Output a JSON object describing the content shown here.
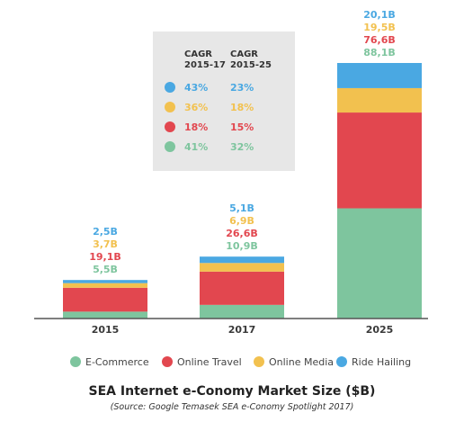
{
  "chart_data": {
    "type": "bar",
    "stacked": true,
    "title": "SEA Internet e-Conomy Market Size ($B)",
    "subtitle": "(Source: Google Temasek SEA e-Conomy Spotlight 2017)",
    "categories": [
      "2015",
      "2017",
      "2025"
    ],
    "series": [
      {
        "name": "E-Commerce",
        "color": "#7ec59e",
        "values": [
          5.5,
          10.9,
          88.1
        ],
        "labels": [
          "5,5B",
          "10,9B",
          "88,1B"
        ]
      },
      {
        "name": "Online Travel",
        "color": "#e2474f",
        "values": [
          19.1,
          26.6,
          76.6
        ],
        "labels": [
          "19,1B",
          "26,6B",
          "76,6B"
        ]
      },
      {
        "name": "Online Media",
        "color": "#f2c14f",
        "values": [
          3.7,
          6.9,
          19.5
        ],
        "labels": [
          "3,7B",
          "6,9B",
          "19,5B"
        ]
      },
      {
        "name": "Ride Hailing",
        "color": "#4aa8e2",
        "values": [
          2.5,
          5.1,
          20.1
        ],
        "labels": [
          "2,5B",
          "5,1B",
          "20,1B"
        ]
      }
    ],
    "legend_position": "bottom",
    "grid": false,
    "cagr_table": {
      "headers": [
        [
          "CAGR",
          "2015-17"
        ],
        [
          "CAGR",
          "2015-25"
        ]
      ],
      "rows": [
        {
          "series": "Ride Hailing",
          "color": "#4aa8e2",
          "v1": "43%",
          "v2": "23%"
        },
        {
          "series": "Online Media",
          "color": "#f2c14f",
          "v1": "36%",
          "v2": "18%"
        },
        {
          "series": "Online Travel",
          "color": "#e2474f",
          "v1": "18%",
          "v2": "15%"
        },
        {
          "series": "E-Commerce",
          "color": "#7ec59e",
          "v1": "41%",
          "v2": "32%"
        }
      ]
    }
  }
}
